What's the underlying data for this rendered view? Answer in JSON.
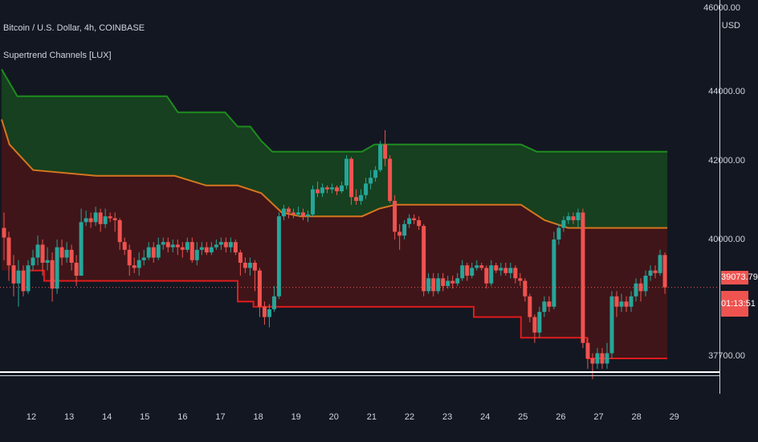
{
  "header": {
    "symbol_line": "Bitcoin / U.S. Dollar, 4h, COINBASE",
    "indicator_line": "Supertrend Channels [LUX]"
  },
  "price_axis": {
    "top_label": "46000.00",
    "currency": "USD",
    "labels": [
      "44000.00",
      "42000.00",
      "40000.00",
      "37700.00"
    ],
    "current_price": "39073.79",
    "countdown": "01:13:51"
  },
  "colors": {
    "background": "#131722",
    "bull": "#26a69a",
    "bear": "#ef5350",
    "upper_fill": "#16401f",
    "lower_fill": "#3f1519",
    "upper_line": "#1e8c1e",
    "mid_line": "#d4761f",
    "lower_line": "#e01b1b",
    "text": "#d1d4dc"
  },
  "chart_data": {
    "type": "candlestick",
    "title": "Bitcoin / U.S. Dollar, 4h, COINBASE",
    "indicator": "Supertrend Channels [LUX]",
    "x_ticks": [
      "12",
      "13",
      "14",
      "15",
      "16",
      "17",
      "18",
      "19",
      "20",
      "21",
      "22",
      "23",
      "24",
      "25",
      "26",
      "27",
      "28",
      "29"
    ],
    "y_ticks": [
      44000,
      42000,
      40000,
      37700
    ],
    "ylim": [
      37000,
      46000
    ],
    "candles": [
      [
        40300,
        40050,
        40700,
        39600
      ],
      [
        40050,
        39500,
        40200,
        39200
      ],
      [
        39500,
        39150,
        39700,
        38900
      ],
      [
        39150,
        39400,
        39600,
        38700
      ],
      [
        39400,
        39000,
        39500,
        38900
      ],
      [
        39000,
        39500,
        39600,
        38950
      ],
      [
        39500,
        39650,
        39800,
        39400
      ],
      [
        39650,
        39900,
        40100,
        39500
      ],
      [
        39900,
        39550,
        40000,
        39300
      ],
      [
        39550,
        39600,
        39850,
        39400
      ],
      [
        39600,
        39050,
        39750,
        38800
      ],
      [
        39050,
        39850,
        40000,
        38950
      ],
      [
        39850,
        39650,
        40000,
        39500
      ],
      [
        39650,
        39800,
        39950,
        39550
      ],
      [
        39800,
        39550,
        39900,
        39400
      ],
      [
        39550,
        39300,
        39700,
        39100
      ],
      [
        39300,
        40450,
        40800,
        39300
      ],
      [
        40450,
        40550,
        40750,
        40350
      ],
      [
        40550,
        40450,
        40700,
        40300
      ],
      [
        40450,
        40700,
        40850,
        40350
      ],
      [
        40700,
        40400,
        40800,
        40200
      ],
      [
        40400,
        40600,
        40800,
        40300
      ],
      [
        40600,
        40550,
        40700,
        40450
      ],
      [
        40550,
        40500,
        40700,
        40200
      ],
      [
        40500,
        39950,
        40550,
        39800
      ],
      [
        39950,
        39800,
        40050,
        39700
      ],
      [
        39800,
        39500,
        39900,
        39300
      ],
      [
        39500,
        39450,
        39650,
        39350
      ],
      [
        39450,
        39600,
        39750,
        39300
      ],
      [
        39600,
        39650,
        39800,
        39500
      ],
      [
        39650,
        39850,
        39950,
        39600
      ],
      [
        39850,
        39650,
        39950,
        39550
      ],
      [
        39650,
        39900,
        40050,
        39600
      ],
      [
        39900,
        39950,
        40050,
        39800
      ],
      [
        39950,
        39850,
        40050,
        39750
      ],
      [
        39850,
        39900,
        40000,
        39750
      ],
      [
        39900,
        39850,
        40000,
        39700
      ],
      [
        39850,
        39800,
        39950,
        39650
      ],
      [
        39800,
        39950,
        40050,
        39750
      ],
      [
        39950,
        39600,
        40050,
        39550
      ],
      [
        39600,
        39800,
        39950,
        39500
      ],
      [
        39800,
        39850,
        39950,
        39700
      ],
      [
        39850,
        39750,
        39950,
        39700
      ],
      [
        39750,
        39850,
        39950,
        39700
      ],
      [
        39850,
        39900,
        40000,
        39800
      ],
      [
        39900,
        39950,
        40050,
        39800
      ],
      [
        39950,
        39850,
        40050,
        39750
      ],
      [
        39850,
        39950,
        40050,
        39750
      ],
      [
        39950,
        39750,
        40000,
        39700
      ],
      [
        39750,
        39550,
        39800,
        39300
      ],
      [
        39550,
        39450,
        39650,
        39350
      ],
      [
        39450,
        39550,
        39650,
        39300
      ],
      [
        39550,
        39400,
        39600,
        39000
      ],
      [
        39400,
        38700,
        39450,
        38500
      ],
      [
        38700,
        38500,
        38800,
        38350
      ],
      [
        38500,
        38650,
        38750,
        38300
      ],
      [
        38650,
        38900,
        39100,
        38600
      ],
      [
        38900,
        40600,
        40700,
        38850
      ],
      [
        40600,
        40800,
        40900,
        40500
      ],
      [
        40800,
        40700,
        40850,
        40550
      ],
      [
        40700,
        40650,
        40800,
        40550
      ],
      [
        40650,
        40700,
        40850,
        40600
      ],
      [
        40700,
        40600,
        40800,
        40500
      ],
      [
        40600,
        40650,
        40750,
        40450
      ],
      [
        40650,
        41300,
        41400,
        40600
      ],
      [
        41300,
        41200,
        41500,
        41100
      ],
      [
        41200,
        41350,
        41450,
        41100
      ],
      [
        41350,
        41300,
        41400,
        41200
      ],
      [
        41300,
        41350,
        41450,
        41200
      ],
      [
        41350,
        41250,
        41400,
        41150
      ],
      [
        41250,
        41400,
        41500,
        41200
      ],
      [
        41400,
        42100,
        42200,
        41300
      ],
      [
        42100,
        41100,
        42150,
        40900
      ],
      [
        41100,
        41000,
        41300,
        40900
      ],
      [
        41000,
        41150,
        41300,
        40900
      ],
      [
        41150,
        41450,
        41600,
        41050
      ],
      [
        41450,
        41600,
        41800,
        41300
      ],
      [
        41600,
        41800,
        41900,
        41500
      ],
      [
        41800,
        42500,
        42600,
        41750
      ],
      [
        42500,
        42100,
        42900,
        41900
      ],
      [
        42100,
        41000,
        42200,
        40950
      ],
      [
        41000,
        40200,
        41150,
        40000
      ],
      [
        40200,
        40100,
        40400,
        39800
      ],
      [
        40100,
        40400,
        40500,
        40000
      ],
      [
        40400,
        40550,
        40650,
        40300
      ],
      [
        40550,
        40500,
        40650,
        40400
      ],
      [
        40500,
        40350,
        40600,
        40250
      ],
      [
        40350,
        39000,
        40400,
        38900
      ],
      [
        39000,
        39250,
        39350,
        38950
      ],
      [
        39250,
        39000,
        39350,
        38900
      ],
      [
        39000,
        39250,
        39350,
        38950
      ],
      [
        39250,
        39100,
        39350,
        39000
      ],
      [
        39100,
        39200,
        39300,
        39050
      ],
      [
        39200,
        39150,
        39300,
        39050
      ],
      [
        39150,
        39250,
        39350,
        39100
      ],
      [
        39250,
        39500,
        39600,
        39200
      ],
      [
        39500,
        39300,
        39550,
        39200
      ],
      [
        39300,
        39450,
        39550,
        39250
      ],
      [
        39450,
        39500,
        39600,
        39400
      ],
      [
        39500,
        39450,
        39550,
        39400
      ],
      [
        39450,
        39150,
        39500,
        39050
      ],
      [
        39150,
        39500,
        39600,
        39100
      ],
      [
        39500,
        39400,
        39550,
        39350
      ],
      [
        39400,
        39450,
        39550,
        39300
      ],
      [
        39450,
        39350,
        39550,
        39300
      ],
      [
        39350,
        39450,
        39550,
        39250
      ],
      [
        39450,
        39250,
        39500,
        39150
      ],
      [
        39250,
        39200,
        39350,
        39100
      ],
      [
        39200,
        38900,
        39250,
        38800
      ],
      [
        38900,
        38500,
        38950,
        38400
      ],
      [
        38500,
        38200,
        38550,
        38000
      ],
      [
        38200,
        38600,
        38700,
        38100
      ],
      [
        38600,
        38800,
        38900,
        38500
      ],
      [
        38800,
        38700,
        38900,
        38600
      ],
      [
        38700,
        40000,
        40200,
        38650
      ],
      [
        40000,
        40300,
        40400,
        39900
      ],
      [
        40300,
        40500,
        40600,
        40200
      ],
      [
        40500,
        40600,
        40700,
        40400
      ],
      [
        40600,
        40500,
        40700,
        40400
      ],
      [
        40500,
        40700,
        40800,
        40300
      ],
      [
        40700,
        38000,
        40800,
        37900
      ],
      [
        38000,
        37700,
        38100,
        37500
      ],
      [
        37700,
        37600,
        37800,
        37300
      ],
      [
        37600,
        37800,
        37900,
        37500
      ],
      [
        37800,
        37600,
        37900,
        37500
      ],
      [
        37600,
        37800,
        38000,
        37500
      ],
      [
        37800,
        38900,
        39000,
        37700
      ],
      [
        38900,
        38700,
        39000,
        38500
      ],
      [
        38700,
        38800,
        38950,
        38600
      ],
      [
        38800,
        38700,
        38900,
        38600
      ],
      [
        38700,
        38900,
        39000,
        38600
      ],
      [
        38900,
        39150,
        39250,
        38800
      ],
      [
        39150,
        39000,
        39250,
        38800
      ],
      [
        39000,
        39300,
        39400,
        38900
      ],
      [
        39300,
        39400,
        39500,
        39200
      ],
      [
        39400,
        39350,
        39500,
        39250
      ],
      [
        39350,
        39700,
        39800,
        39300
      ],
      [
        39700,
        39073.79,
        39750,
        38950
      ]
    ],
    "upper_band": [
      [
        0,
        44600
      ],
      [
        10,
        43850
      ],
      [
        60,
        43850
      ],
      [
        105,
        43850
      ],
      [
        112,
        43400
      ],
      [
        118,
        43400
      ],
      [
        142,
        43400
      ],
      [
        150,
        43000
      ],
      [
        158,
        43000
      ],
      [
        165,
        42600
      ],
      [
        172,
        42300
      ],
      [
        178,
        42300
      ],
      [
        190,
        42300
      ],
      [
        210,
        42300
      ],
      [
        229,
        42300
      ],
      [
        237,
        42500
      ],
      [
        260,
        42500
      ],
      [
        330,
        42500
      ],
      [
        340,
        42300
      ],
      [
        383,
        42300
      ],
      [
        423,
        42300
      ]
    ],
    "mid_band": [
      [
        0,
        43200
      ],
      [
        5,
        42500
      ],
      [
        20,
        41800
      ],
      [
        60,
        41650
      ],
      [
        110,
        41650
      ],
      [
        130,
        41400
      ],
      [
        150,
        41400
      ],
      [
        165,
        41200
      ],
      [
        178,
        40700
      ],
      [
        190,
        40600
      ],
      [
        210,
        40600
      ],
      [
        229,
        40600
      ],
      [
        240,
        40800
      ],
      [
        250,
        40900
      ],
      [
        290,
        40900
      ],
      [
        330,
        40900
      ],
      [
        345,
        40500
      ],
      [
        360,
        40300
      ],
      [
        423,
        40300
      ]
    ],
    "lower_band": [
      [
        18,
        39400
      ],
      [
        27,
        39400
      ],
      [
        27,
        39200
      ],
      [
        150,
        39200
      ],
      [
        150,
        38800
      ],
      [
        160,
        38800
      ],
      [
        160,
        38700
      ],
      [
        300,
        38700
      ],
      [
        300,
        38500
      ],
      [
        330,
        38500
      ],
      [
        330,
        38100
      ],
      [
        372,
        38100
      ],
      [
        372,
        37700
      ],
      [
        423,
        37700
      ]
    ],
    "current_price": 39073.79
  }
}
